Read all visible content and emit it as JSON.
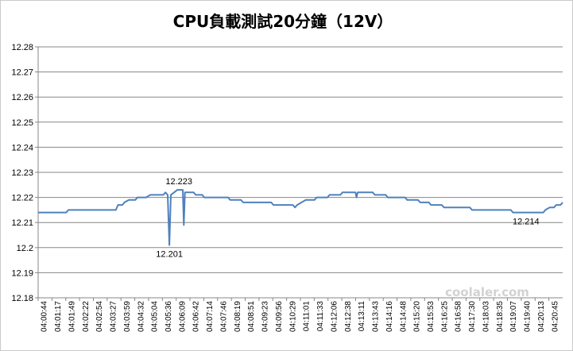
{
  "chart_data": {
    "type": "line",
    "title": "CPU負載測試20分鐘（12V）",
    "ylim": [
      12.18,
      12.28
    ],
    "yticks": [
      "12.18",
      "12.19",
      "12.2",
      "12.21",
      "12.22",
      "12.23",
      "12.24",
      "12.25",
      "12.26",
      "12.27",
      "12.28"
    ],
    "xticks": [
      "04:00:44",
      "04:01:17",
      "04:01:49",
      "04:02:22",
      "04:02:54",
      "04:03:27",
      "04:03:59",
      "04:04:32",
      "04:05:04",
      "04:05:36",
      "04:06:09",
      "04:06:42",
      "04:07:14",
      "04:07:46",
      "04:08:19",
      "04:08:51",
      "04:09:23",
      "04:09:56",
      "04:10:29",
      "04:11:01",
      "04:11:33",
      "04:12:06",
      "04:12:38",
      "04:13:11",
      "04:13:43",
      "04:14:16",
      "04:14:48",
      "04:15:20",
      "04:15:53",
      "04:16:25",
      "04:16:58",
      "04:17:30",
      "04:18:03",
      "04:18:35",
      "04:19:07",
      "04:19:40",
      "04:20:13",
      "04:20:45"
    ],
    "grid": true,
    "line_color": "#4f81bd",
    "series": [
      {
        "points": [
          [
            0,
            12.214
          ],
          [
            1.3,
            12.214
          ],
          [
            1.4,
            12.215
          ],
          [
            3.0,
            12.215
          ],
          [
            3.6,
            12.215
          ],
          [
            3.7,
            12.217
          ],
          [
            3.9,
            12.217
          ],
          [
            4.0,
            12.218
          ],
          [
            4.2,
            12.219
          ],
          [
            4.5,
            12.219
          ],
          [
            4.6,
            12.22
          ],
          [
            5.0,
            12.22
          ],
          [
            5.2,
            12.221
          ],
          [
            5.8,
            12.221
          ],
          [
            5.9,
            12.222
          ],
          [
            6.0,
            12.221
          ],
          [
            6.08,
            12.201
          ],
          [
            6.15,
            12.221
          ],
          [
            6.3,
            12.222
          ],
          [
            6.45,
            12.223
          ],
          [
            6.7,
            12.223
          ],
          [
            6.75,
            12.209
          ],
          [
            6.8,
            12.222
          ],
          [
            7.2,
            12.222
          ],
          [
            7.3,
            12.221
          ],
          [
            7.6,
            12.221
          ],
          [
            7.7,
            12.22
          ],
          [
            8.8,
            12.22
          ],
          [
            8.9,
            12.219
          ],
          [
            9.4,
            12.219
          ],
          [
            9.5,
            12.218
          ],
          [
            10.8,
            12.218
          ],
          [
            10.9,
            12.217
          ],
          [
            11.8,
            12.217
          ],
          [
            11.9,
            12.216
          ],
          [
            12.0,
            12.217
          ],
          [
            12.2,
            12.218
          ],
          [
            12.4,
            12.219
          ],
          [
            12.8,
            12.219
          ],
          [
            12.9,
            12.22
          ],
          [
            13.4,
            12.22
          ],
          [
            13.5,
            12.221
          ],
          [
            14.0,
            12.221
          ],
          [
            14.1,
            12.222
          ],
          [
            14.7,
            12.222
          ],
          [
            14.75,
            12.22
          ],
          [
            14.8,
            12.222
          ],
          [
            15.5,
            12.222
          ],
          [
            15.6,
            12.221
          ],
          [
            16.1,
            12.221
          ],
          [
            16.2,
            12.22
          ],
          [
            17.0,
            12.22
          ],
          [
            17.1,
            12.219
          ],
          [
            17.6,
            12.219
          ],
          [
            17.7,
            12.218
          ],
          [
            18.1,
            12.218
          ],
          [
            18.2,
            12.217
          ],
          [
            18.7,
            12.217
          ],
          [
            18.8,
            12.216
          ],
          [
            20.0,
            12.216
          ],
          [
            20.1,
            12.215
          ],
          [
            21.9,
            12.215
          ],
          [
            22.0,
            12.214
          ],
          [
            23.4,
            12.214
          ],
          [
            23.5,
            12.215
          ],
          [
            23.7,
            12.216
          ],
          [
            23.9,
            12.216
          ],
          [
            24.0,
            12.217
          ],
          [
            24.2,
            12.217
          ],
          [
            24.3,
            12.218
          ]
        ]
      }
    ],
    "x_range": [
      0,
      24.3
    ],
    "annotations": [
      {
        "text": "12.223",
        "x": 6.45,
        "y": 12.223
      },
      {
        "text": "12.201",
        "x": 6.08,
        "y": 12.201
      },
      {
        "text": "12.214",
        "x": 22.6,
        "y": 12.214
      }
    ]
  },
  "watermark": "coolaler.com"
}
